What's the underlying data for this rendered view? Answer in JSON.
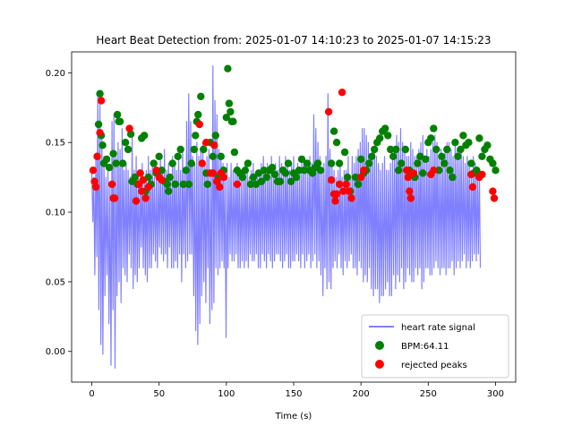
{
  "chart_data": {
    "type": "line",
    "title": "Heart Beat Detection from: 2025-01-07 14:10:23 to 2025-01-07 14:15:23",
    "xlabel": "Time (s)",
    "ylabel": "",
    "xlim": [
      -15,
      315
    ],
    "ylim": [
      -0.022,
      0.215
    ],
    "xticks": [
      0,
      50,
      100,
      150,
      200,
      250,
      300
    ],
    "yticks": [
      0.0,
      0.05,
      0.1,
      0.15,
      0.2
    ],
    "ytick_labels": [
      "0.00",
      "0.05",
      "0.10",
      "0.15",
      "0.20"
    ],
    "grid": false,
    "legend_position": "lower-right",
    "legend": [
      {
        "label": "heart rate signal",
        "kind": "line"
      },
      {
        "label": "BPM:64.11",
        "kind": "marker"
      },
      {
        "label": "rejected peaks",
        "kind": "marker"
      }
    ],
    "colors": {
      "signal": "#8080ff",
      "accepted": "#008000",
      "rejected": "#ff0000"
    },
    "series": [
      {
        "name": "heart rate signal",
        "x": [
          0,
          1.5,
          3,
          4.5,
          6,
          7.5,
          9,
          10.5,
          12,
          13.5,
          15,
          16.5,
          18,
          19.5,
          21,
          22.5,
          24,
          25.5,
          27,
          28.5,
          30,
          31.5,
          33,
          34.5,
          36,
          37.5,
          39,
          40.5,
          42,
          43.5,
          45,
          46.5,
          48,
          49.5,
          51,
          52.5,
          54,
          55.5,
          57,
          58.5,
          60,
          61.5,
          63,
          64.5,
          66,
          67.5,
          69,
          70.5,
          72,
          73.5,
          75,
          76.5,
          78,
          79.5,
          81,
          82.5,
          84,
          85.5,
          87,
          88.5,
          90,
          91.5,
          93,
          94.5,
          96,
          97.5,
          99,
          100.5,
          102,
          103.5,
          105,
          106.5,
          108,
          109.5,
          111,
          112.5,
          114,
          115.5,
          117,
          118.5,
          120,
          121.5,
          123,
          124.5,
          126,
          127.5,
          129,
          130.5,
          132,
          133.5,
          135,
          136.5,
          138,
          139.5,
          141,
          142.5,
          144,
          145.5,
          147,
          148.5,
          150,
          151.5,
          153,
          154.5,
          156,
          157.5,
          159,
          160.5,
          162,
          163.5,
          165,
          166.5,
          168,
          169.5,
          171,
          172.5,
          174,
          175.5,
          177,
          178.5,
          180,
          181.5,
          183,
          184.5,
          186,
          187.5,
          189,
          190.5,
          192,
          193.5,
          195,
          196.5,
          198,
          199.5,
          201,
          202.5,
          204,
          205.5,
          207,
          208.5,
          210,
          211.5,
          213,
          214.5,
          216,
          217.5,
          219,
          220.5,
          222,
          223.5,
          225,
          226.5,
          228,
          229.5,
          231,
          232.5,
          234,
          235.5,
          237,
          238.5,
          240,
          241.5,
          243,
          244.5,
          246,
          247.5,
          249,
          250.5,
          252,
          253.5,
          255,
          256.5,
          258,
          259.5,
          261,
          262.5,
          264,
          265.5,
          267,
          268.5,
          270,
          271.5,
          273,
          274.5,
          276,
          277.5,
          279,
          280.5,
          282,
          283.5,
          285,
          286.5,
          288,
          289.5,
          291,
          292.5,
          294,
          295.5,
          297,
          298.5,
          300
        ],
        "min": [
          0.093,
          0.055,
          0.068,
          0.03,
          0.005,
          -0.002,
          0.04,
          0.055,
          0.02,
          -0.01,
          0.03,
          -0.012,
          0.04,
          0.05,
          0.035,
          0.06,
          0.055,
          0.05,
          0.07,
          0.06,
          0.045,
          0.055,
          0.05,
          0.06,
          0.075,
          0.06,
          0.055,
          0.05,
          0.06,
          0.06,
          0.07,
          0.065,
          0.06,
          0.075,
          0.07,
          0.065,
          0.07,
          0.06,
          0.075,
          0.06,
          0.06,
          0.065,
          0.06,
          0.07,
          0.05,
          0.07,
          0.06,
          0.065,
          0.07,
          0.07,
          0.04,
          0.015,
          0.005,
          0.02,
          0.04,
          0.05,
          0.035,
          0.06,
          0.02,
          0.03,
          0.035,
          0.06,
          0.055,
          0.06,
          0.065,
          0.06,
          0.01,
          0.06,
          0.07,
          0.065,
          0.065,
          0.07,
          0.06,
          0.06,
          0.065,
          0.06,
          0.065,
          0.06,
          0.07,
          0.065,
          0.065,
          0.07,
          0.06,
          0.06,
          0.07,
          0.065,
          0.06,
          0.07,
          0.065,
          0.06,
          0.065,
          0.07,
          0.07,
          0.065,
          0.06,
          0.065,
          0.07,
          0.06,
          0.06,
          0.065,
          0.065,
          0.07,
          0.065,
          0.06,
          0.07,
          0.06,
          0.065,
          0.07,
          0.06,
          0.065,
          0.07,
          0.06,
          0.065,
          0.055,
          0.04,
          0.06,
          0.045,
          0.05,
          0.045,
          0.06,
          0.065,
          0.06,
          0.07,
          0.06,
          0.055,
          0.065,
          0.06,
          0.065,
          0.07,
          0.06,
          0.06,
          0.055,
          0.065,
          0.06,
          0.05,
          0.055,
          0.05,
          0.06,
          0.045,
          0.04,
          0.045,
          0.045,
          0.035,
          0.04,
          0.04,
          0.045,
          0.05,
          0.04,
          0.04,
          0.055,
          0.045,
          0.055,
          0.05,
          0.06,
          0.045,
          0.05,
          0.06,
          0.055,
          0.05,
          0.05,
          0.06,
          0.055,
          0.06,
          0.045,
          0.05,
          0.06,
          0.06,
          0.055,
          0.055,
          0.06,
          0.065,
          0.06,
          0.055,
          0.06,
          0.06,
          0.055,
          0.06,
          0.06,
          0.065,
          0.055,
          0.06,
          0.065,
          0.06,
          0.065,
          0.07,
          0.06,
          0.065,
          0.06,
          0.065,
          0.07,
          0.065,
          0.07,
          0.06,
          0.065,
          0.07,
          0.068,
          0.07,
          0.065,
          0.07,
          0.06,
          0.07
        ],
        "max": [
          0.13,
          0.125,
          0.14,
          0.185,
          0.18,
          0.155,
          0.14,
          0.125,
          0.13,
          0.12,
          0.165,
          0.17,
          0.14,
          0.15,
          0.145,
          0.16,
          0.13,
          0.135,
          0.13,
          0.125,
          0.155,
          0.13,
          0.14,
          0.13,
          0.12,
          0.135,
          0.125,
          0.13,
          0.14,
          0.13,
          0.135,
          0.125,
          0.13,
          0.125,
          0.14,
          0.13,
          0.145,
          0.13,
          0.135,
          0.125,
          0.14,
          0.135,
          0.13,
          0.14,
          0.13,
          0.145,
          0.13,
          0.165,
          0.185,
          0.165,
          0.14,
          0.135,
          0.15,
          0.14,
          0.145,
          0.15,
          0.135,
          0.14,
          0.145,
          0.13,
          0.205,
          0.18,
          0.17,
          0.145,
          0.14,
          0.135,
          0.13,
          0.135,
          0.125,
          0.135,
          0.13,
          0.13,
          0.135,
          0.13,
          0.125,
          0.13,
          0.135,
          0.13,
          0.125,
          0.13,
          0.135,
          0.125,
          0.13,
          0.13,
          0.135,
          0.14,
          0.13,
          0.135,
          0.13,
          0.14,
          0.13,
          0.135,
          0.13,
          0.14,
          0.135,
          0.13,
          0.14,
          0.135,
          0.13,
          0.135,
          0.14,
          0.13,
          0.135,
          0.13,
          0.135,
          0.14,
          0.13,
          0.13,
          0.14,
          0.135,
          0.17,
          0.16,
          0.15,
          0.14,
          0.13,
          0.135,
          0.14,
          0.185,
          0.145,
          0.135,
          0.13,
          0.125,
          0.13,
          0.135,
          0.125,
          0.13,
          0.13,
          0.14,
          0.125,
          0.14,
          0.135,
          0.14,
          0.145,
          0.15,
          0.16,
          0.16,
          0.155,
          0.15,
          0.14,
          0.145,
          0.145,
          0.14,
          0.135,
          0.13,
          0.135,
          0.14,
          0.13,
          0.13,
          0.135,
          0.14,
          0.145,
          0.155,
          0.15,
          0.16,
          0.15,
          0.145,
          0.14,
          0.14,
          0.15,
          0.145,
          0.14,
          0.14,
          0.145,
          0.15,
          0.155,
          0.14,
          0.145,
          0.14,
          0.145,
          0.15,
          0.155,
          0.15,
          0.14,
          0.145,
          0.14,
          0.145,
          0.15,
          0.15,
          0.145,
          0.14,
          0.15,
          0.145,
          0.14,
          0.145,
          0.14,
          0.135,
          0.14,
          0.135,
          0.13,
          0.14,
          0.135,
          0.13,
          0.13
        ]
      },
      {
        "name": "BPM:64.11",
        "x": [
          4,
          5,
          6,
          7,
          8,
          9,
          11,
          13,
          16,
          18,
          19,
          20,
          21,
          23,
          25,
          27,
          29,
          30,
          32,
          34,
          37,
          39,
          40,
          42,
          44,
          46,
          48,
          50,
          52,
          54,
          56,
          57,
          58,
          60,
          62,
          64,
          66,
          68,
          70,
          72,
          74,
          76,
          77,
          78,
          79,
          81,
          83,
          85,
          86,
          88,
          90,
          92,
          94,
          96,
          98,
          100,
          101,
          102,
          103,
          104,
          105,
          106,
          108,
          110,
          112,
          114,
          116,
          118,
          120,
          122,
          124,
          126,
          128,
          130,
          132,
          134,
          136,
          138,
          140,
          142,
          144,
          146,
          148,
          150,
          152,
          154,
          156,
          158,
          160,
          162,
          164,
          166,
          168,
          170,
          178,
          180,
          182,
          184,
          188,
          190,
          192,
          196,
          198,
          200,
          202,
          204,
          206,
          208,
          210,
          212,
          214,
          216,
          218,
          220,
          222,
          224,
          226,
          228,
          230,
          233,
          236,
          240,
          242,
          244,
          246,
          248,
          250,
          252,
          254,
          256,
          258,
          260,
          262,
          264,
          266,
          268,
          270,
          272,
          274,
          276,
          278,
          280,
          282,
          284,
          286,
          288,
          290,
          292,
          294,
          296,
          298,
          300
        ],
        "y": [
          0.14,
          0.163,
          0.185,
          0.155,
          0.148,
          0.135,
          0.138,
          0.132,
          0.142,
          0.135,
          0.17,
          0.165,
          0.165,
          0.135,
          0.15,
          0.145,
          0.156,
          0.122,
          0.125,
          0.12,
          0.153,
          0.155,
          0.115,
          0.125,
          0.12,
          0.135,
          0.128,
          0.14,
          0.13,
          0.122,
          0.12,
          0.115,
          0.125,
          0.135,
          0.12,
          0.14,
          0.145,
          0.12,
          0.13,
          0.12,
          0.135,
          0.145,
          0.155,
          0.165,
          0.17,
          0.183,
          0.145,
          0.128,
          0.12,
          0.15,
          0.14,
          0.155,
          0.125,
          0.14,
          0.13,
          0.168,
          0.203,
          0.178,
          0.172,
          0.165,
          0.165,
          0.143,
          0.13,
          0.128,
          0.125,
          0.13,
          0.135,
          0.12,
          0.125,
          0.12,
          0.128,
          0.122,
          0.13,
          0.125,
          0.13,
          0.132,
          0.127,
          0.122,
          0.122,
          0.13,
          0.128,
          0.135,
          0.122,
          0.128,
          0.125,
          0.13,
          0.138,
          0.13,
          0.135,
          0.13,
          0.128,
          0.132,
          0.135,
          0.13,
          0.135,
          0.158,
          0.15,
          0.135,
          0.143,
          0.125,
          0.115,
          0.125,
          0.12,
          0.138,
          0.128,
          0.13,
          0.135,
          0.14,
          0.145,
          0.15,
          0.153,
          0.158,
          0.16,
          0.155,
          0.145,
          0.14,
          0.145,
          0.13,
          0.135,
          0.145,
          0.13,
          0.125,
          0.135,
          0.14,
          0.128,
          0.138,
          0.15,
          0.153,
          0.16,
          0.145,
          0.13,
          0.14,
          0.135,
          0.145,
          0.13,
          0.125,
          0.15,
          0.14,
          0.145,
          0.155,
          0.148,
          0.15,
          0.135,
          0.128,
          0.13,
          0.153,
          0.14,
          0.145,
          0.148,
          0.138,
          0.135,
          0.13
        ]
      },
      {
        "name": "rejected peaks",
        "x": [
          1,
          2,
          3,
          4,
          6,
          7,
          15,
          16,
          17,
          28,
          33,
          35,
          36,
          37,
          38,
          40,
          42,
          48,
          50,
          52,
          80,
          82,
          85,
          88,
          90,
          91,
          93,
          95,
          96,
          98,
          108,
          176,
          178,
          180,
          181,
          182,
          184,
          186,
          187,
          189,
          191,
          193,
          200,
          202,
          234,
          235,
          236,
          237,
          239,
          252,
          254,
          282,
          283,
          288,
          290,
          298,
          299
        ],
        "y": [
          0.13,
          0.122,
          0.118,
          0.14,
          0.157,
          0.18,
          0.12,
          0.11,
          0.11,
          0.16,
          0.108,
          0.12,
          0.128,
          0.115,
          0.123,
          0.11,
          0.118,
          0.13,
          0.125,
          0.123,
          0.163,
          0.135,
          0.15,
          0.128,
          0.128,
          0.148,
          0.122,
          0.118,
          0.128,
          0.125,
          0.12,
          0.172,
          0.123,
          0.113,
          0.108,
          0.113,
          0.12,
          0.186,
          0.115,
          0.12,
          0.115,
          0.11,
          0.125,
          0.13,
          0.13,
          0.125,
          0.115,
          0.11,
          0.128,
          0.127,
          0.13,
          0.127,
          0.118,
          0.125,
          0.127,
          0.115,
          0.11
        ]
      }
    ]
  }
}
